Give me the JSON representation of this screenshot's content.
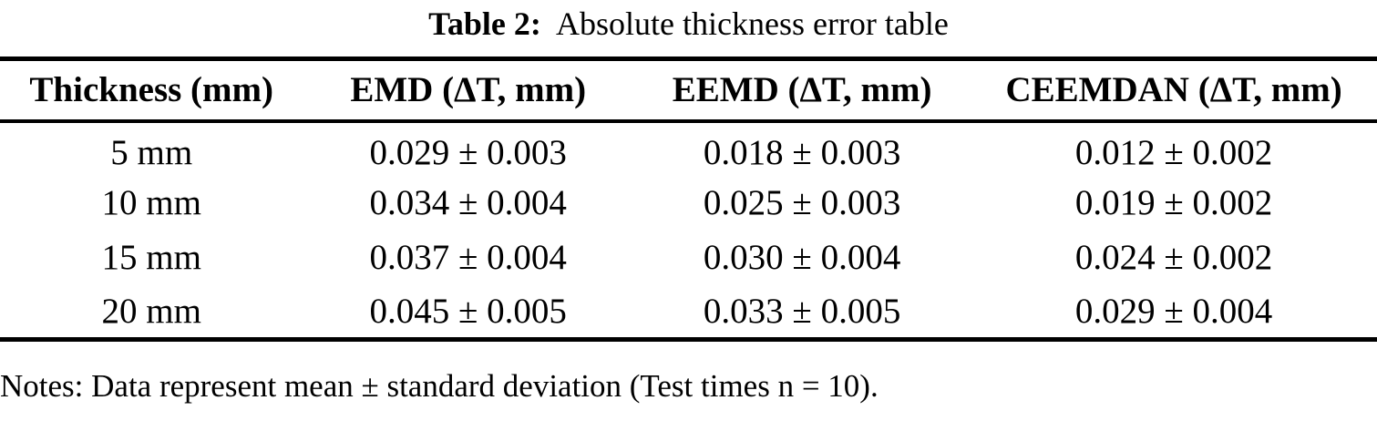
{
  "caption": {
    "label": "Table 2:",
    "text": "Absolute thickness error table"
  },
  "table": {
    "columns": [
      "Thickness (mm)",
      "EMD (ΔT, mm)",
      "EEMD (ΔT, mm)",
      "CEEMDAN (ΔT, mm)"
    ],
    "rows": [
      [
        "5 mm",
        "0.029 ± 0.003",
        "0.018 ± 0.003",
        "0.012 ± 0.002"
      ],
      [
        "10 mm",
        "0.034 ± 0.004",
        "0.025 ± 0.003",
        "0.019 ± 0.002"
      ],
      [
        "15 mm",
        "0.037 ± 0.004",
        "0.030 ± 0.004",
        "0.024 ± 0.002"
      ],
      [
        "20 mm",
        "0.045 ± 0.005",
        "0.033 ± 0.005",
        "0.029 ± 0.004"
      ]
    ]
  },
  "notes": "Notes: Data represent mean ± standard deviation (Test times n = 10).",
  "colors": {
    "text": "#000000",
    "background": "#ffffff",
    "rule": "#000000"
  }
}
